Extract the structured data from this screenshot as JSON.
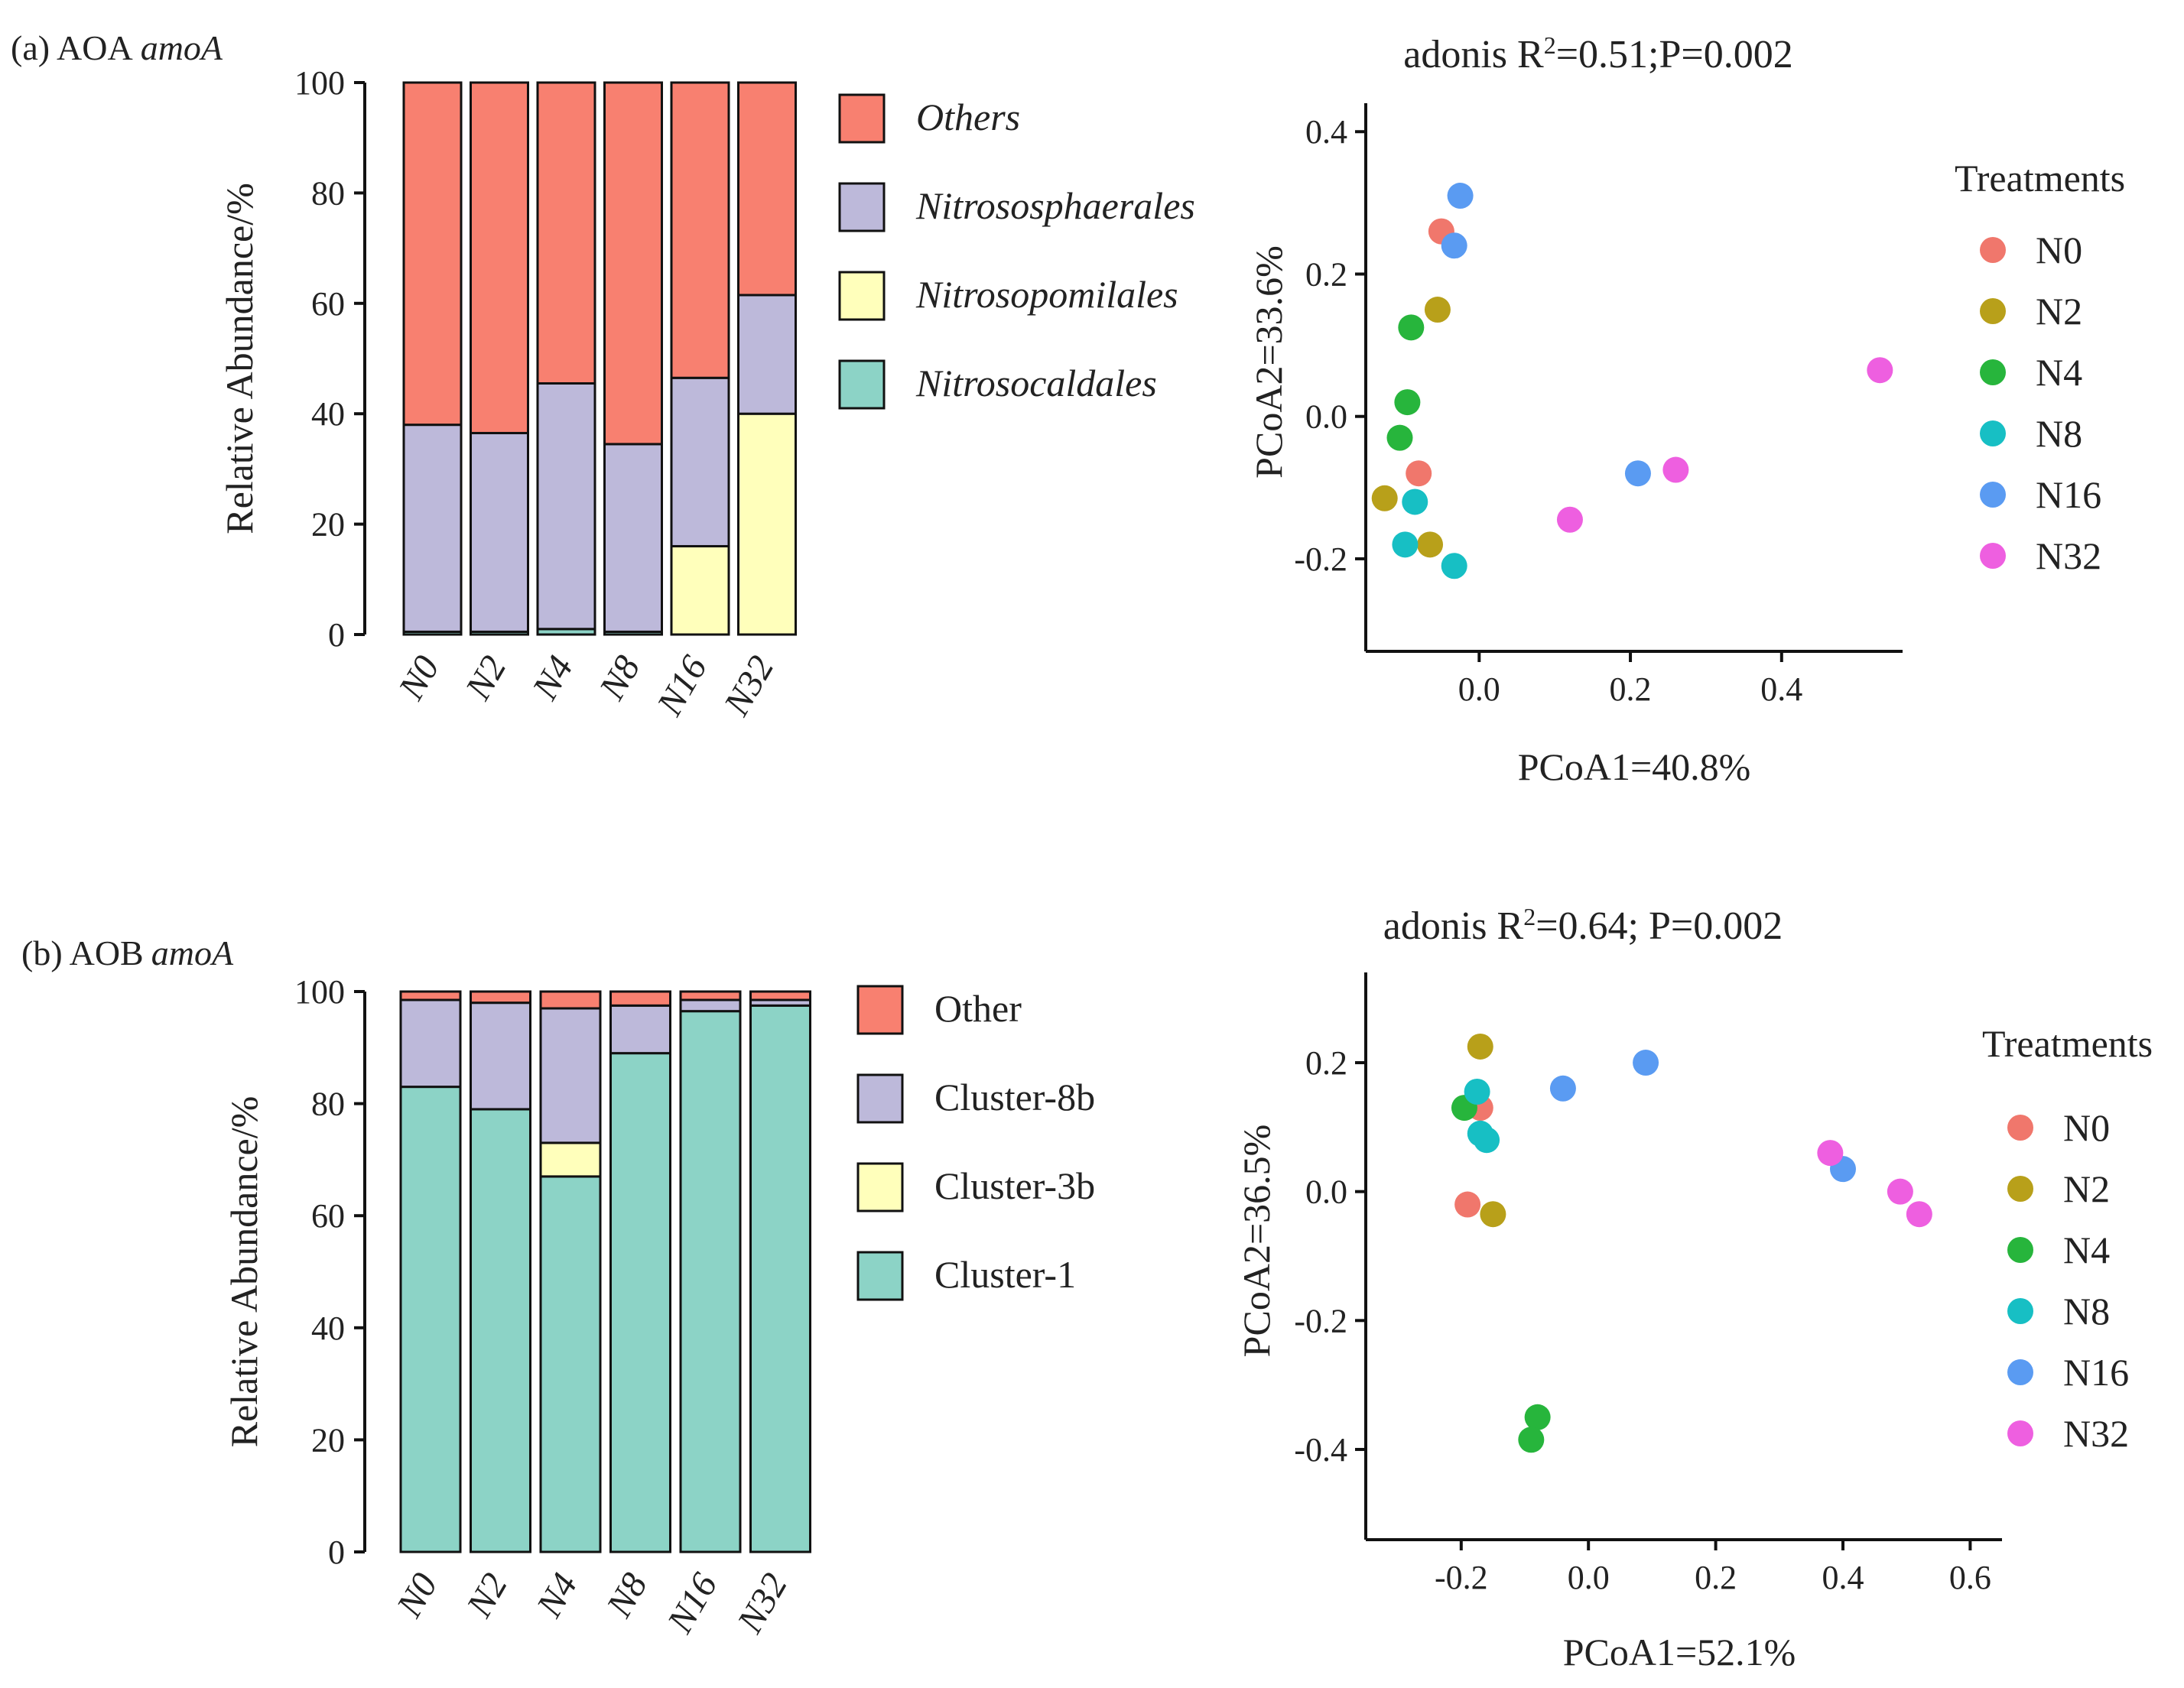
{
  "colors": {
    "Others": "#F88070",
    "Nitrososphaerales": "#BDB9DA",
    "Nitrosopomilales": "#FFFFBB",
    "Nitrosocaldales": "#8CD3C6",
    "Other": "#F88070",
    "Cluster-8b": "#BDB9DA",
    "Cluster-3b": "#FFFFBB",
    "Cluster-1": "#8CD3C6",
    "N0": "#F0776C",
    "N2": "#B8A01A",
    "N4": "#27B53C",
    "N8": "#17BFC4",
    "N16": "#5A9BF2",
    "N32": "#EE5FE0"
  },
  "chart_data": [
    {
      "id": "aoa-bar",
      "type": "bar",
      "stacked": true,
      "panel_label": "(a) AOA",
      "panel_label_italic": "amoA",
      "title": "",
      "xlabel": "",
      "ylabel": "Relative Abundance/%",
      "ylim": [
        0,
        100
      ],
      "yticks": [
        "0",
        "20",
        "40",
        "60",
        "80",
        "100"
      ],
      "categories": [
        "N0",
        "N2",
        "N4",
        "N8",
        "N16",
        "N32"
      ],
      "series": [
        {
          "name": "Nitrosocaldales",
          "values": [
            0.5,
            0.5,
            1,
            0.5,
            0,
            0
          ]
        },
        {
          "name": "Nitrosopomilales",
          "values": [
            0,
            0,
            0,
            0,
            16,
            40
          ]
        },
        {
          "name": "Nitrososphaerales",
          "values": [
            37.5,
            36,
            44.5,
            34,
            30.5,
            21.5
          ]
        },
        {
          "name": "Others",
          "values": [
            62,
            63.5,
            54.5,
            65.5,
            53.5,
            38.5
          ]
        }
      ],
      "legend": [
        "Others",
        "Nitrososphaerales",
        "Nitrosopomilales",
        "Nitrosocaldales"
      ],
      "legend_italic": true
    },
    {
      "id": "aoa-pcoa",
      "type": "scatter",
      "title": "adonis R²=0.51;P=0.002",
      "xlabel": "PCoA1=40.8%",
      "ylabel": "PCoA2=33.6%",
      "xlim": [
        -0.15,
        0.56
      ],
      "ylim": [
        -0.33,
        0.44
      ],
      "xticks": [
        "0.0",
        "0.2",
        "0.4"
      ],
      "yticks": [
        "0.4",
        "0.2",
        "0.0",
        "-0.2"
      ],
      "legend_title": "Treatments",
      "legend": [
        "N0",
        "N2",
        "N4",
        "N8",
        "N16",
        "N32"
      ],
      "series": [
        {
          "name": "N0",
          "points": [
            [
              -0.05,
              0.26
            ],
            [
              -0.08,
              -0.08
            ]
          ]
        },
        {
          "name": "N2",
          "points": [
            [
              -0.055,
              0.15
            ],
            [
              -0.125,
              -0.115
            ],
            [
              -0.065,
              -0.18
            ]
          ]
        },
        {
          "name": "N4",
          "points": [
            [
              -0.09,
              0.125
            ],
            [
              -0.095,
              0.02
            ],
            [
              -0.105,
              -0.03
            ]
          ]
        },
        {
          "name": "N8",
          "points": [
            [
              -0.085,
              -0.12
            ],
            [
              -0.098,
              -0.18
            ],
            [
              -0.033,
              -0.21
            ]
          ]
        },
        {
          "name": "N16",
          "points": [
            [
              -0.025,
              0.31
            ],
            [
              -0.033,
              0.24
            ],
            [
              0.21,
              -0.08
            ]
          ]
        },
        {
          "name": "N32",
          "points": [
            [
              0.12,
              -0.145
            ],
            [
              0.26,
              -0.075
            ],
            [
              0.53,
              0.065
            ]
          ]
        }
      ]
    },
    {
      "id": "aob-bar",
      "type": "bar",
      "stacked": true,
      "panel_label": "(b) AOB",
      "panel_label_italic": "amoA",
      "title": "",
      "xlabel": "",
      "ylabel": "Relative Abundance/%",
      "ylim": [
        0,
        100
      ],
      "yticks": [
        "0",
        "20",
        "40",
        "60",
        "80",
        "100"
      ],
      "categories": [
        "N0",
        "N2",
        "N4",
        "N8",
        "N16",
        "N32"
      ],
      "series": [
        {
          "name": "Cluster-1",
          "values": [
            83,
            79,
            67,
            89,
            96.5,
            97.5
          ]
        },
        {
          "name": "Cluster-3b",
          "values": [
            0,
            0,
            6,
            0,
            0,
            0
          ]
        },
        {
          "name": "Cluster-8b",
          "values": [
            15.5,
            19,
            24,
            8.5,
            2,
            1
          ]
        },
        {
          "name": "Other",
          "values": [
            1.5,
            2,
            3,
            2.5,
            1.5,
            1.5
          ]
        }
      ],
      "legend": [
        "Other",
        "Cluster-8b",
        "Cluster-3b",
        "Cluster-1"
      ],
      "legend_italic": false
    },
    {
      "id": "aob-pcoa",
      "type": "scatter",
      "title": "adonis R²=0.64; P=0.002",
      "xlabel": "PCoA1=52.1%",
      "ylabel": "PCoA2=36.5%",
      "xlim": [
        -0.35,
        0.65
      ],
      "ylim": [
        -0.54,
        0.34
      ],
      "xticks": [
        "-0.2",
        "0.0",
        "0.2",
        "0.4",
        "0.6"
      ],
      "yticks": [
        "0.2",
        "0.0",
        "-0.2",
        "-0.4"
      ],
      "legend_title": "Treatments",
      "legend": [
        "N0",
        "N2",
        "N4",
        "N8",
        "N16",
        "N32"
      ],
      "series": [
        {
          "name": "N0",
          "points": [
            [
              -0.17,
              0.13
            ],
            [
              -0.19,
              -0.02
            ]
          ]
        },
        {
          "name": "N2",
          "points": [
            [
              -0.17,
              0.225
            ],
            [
              -0.15,
              -0.035
            ]
          ]
        },
        {
          "name": "N4",
          "points": [
            [
              -0.195,
              0.13
            ],
            [
              -0.08,
              -0.35
            ],
            [
              -0.09,
              -0.385
            ]
          ]
        },
        {
          "name": "N8",
          "points": [
            [
              -0.175,
              0.155
            ],
            [
              -0.17,
              0.09
            ],
            [
              -0.16,
              0.08
            ]
          ]
        },
        {
          "name": "N16",
          "points": [
            [
              -0.04,
              0.16
            ],
            [
              0.09,
              0.2
            ],
            [
              0.4,
              0.035
            ]
          ]
        },
        {
          "name": "N32",
          "points": [
            [
              0.38,
              0.06
            ],
            [
              0.49,
              0.0
            ],
            [
              0.52,
              -0.035
            ]
          ]
        }
      ]
    }
  ]
}
